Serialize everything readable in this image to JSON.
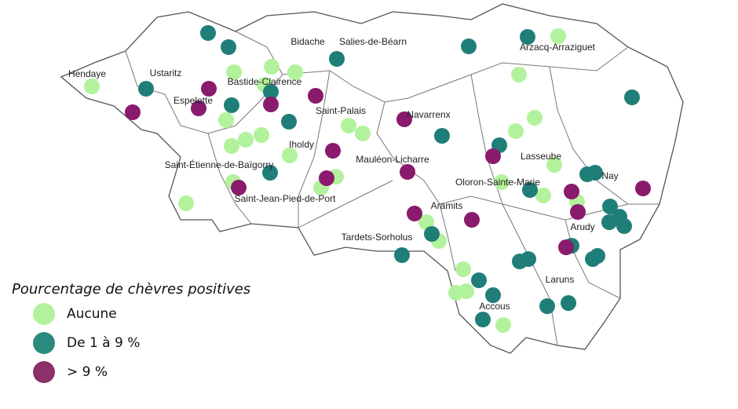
{
  "map": {
    "towns": [
      "Hendaye",
      "Ustaritz",
      "Bidache",
      "Salies-de-Béarn",
      "Arzacq-Arraziguet",
      "Bastide-Clairence",
      "Espelette",
      "Saint-Palais",
      "Navarrenx",
      "Iholdy",
      "Lasseube",
      "Saint-Étienne-de-Baïgorry",
      "Mauléon-Licharre",
      "Oloron-Sainte-Marie",
      "Nay",
      "Saint-Jean-Pied-de-Port",
      "Aramits",
      "Arudy",
      "Tardets-Sorholus",
      "Laruns",
      "Accous"
    ],
    "legend": {
      "title": "Pourcentage de chèvres positives",
      "items": [
        "Aucune",
        "De 1 à 9 %",
        "> 9 %"
      ]
    }
  }
}
